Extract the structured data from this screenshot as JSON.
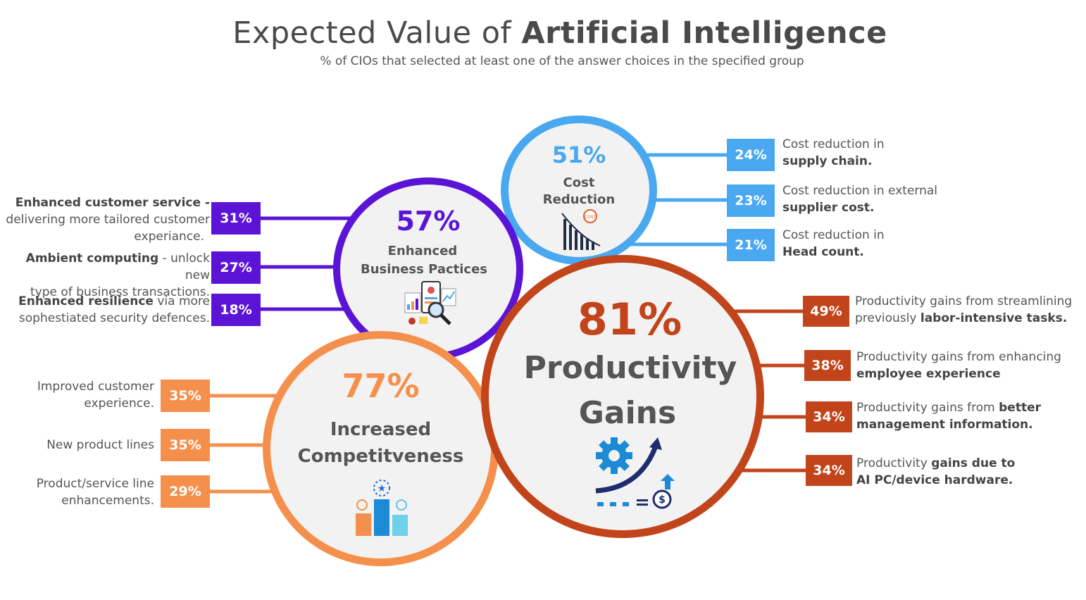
{
  "title": {
    "light": "Expected Value of ",
    "bold": "Artificial Intelligence"
  },
  "subtitle": "% of CIOs that selected at least one of the answer choices in the specified group",
  "colors": {
    "purple": "#5b14d6",
    "blue": "#4aa8f0",
    "orange": "#f5904c",
    "rust": "#c2441a",
    "circle_fill": "#f2f2f2"
  },
  "groups": {
    "cost": {
      "pct": "51%",
      "name_line1": "Cost",
      "name_line2": "Reduction",
      "icon": "cost-chart-icon",
      "items": [
        {
          "pct": "24%",
          "line1": "Cost reduction in",
          "line2_bold": "supply chain."
        },
        {
          "pct": "23%",
          "line1": "Cost reduction in external",
          "line2_bold": "supplier cost."
        },
        {
          "pct": "21%",
          "line1": "Cost reduction in",
          "line2_bold": "Head count."
        }
      ]
    },
    "business": {
      "pct": "57%",
      "name_line1": "Enhanced",
      "name_line2": "Business Pactices",
      "icon": "business-analytics-icon",
      "items": [
        {
          "pct": "31%",
          "bold": "Enhanced customer service -",
          "rest1": "delivering more tailored customer",
          "rest2": "experiance."
        },
        {
          "pct": "27%",
          "bold": "Ambient computing",
          "rest_inline": " - unlock new",
          "rest2": "type of business transactions."
        },
        {
          "pct": "18%",
          "bold": "Enhanced resilience",
          "rest_inline": " via more",
          "rest2": "sophestiated security defences."
        }
      ]
    },
    "productivity": {
      "pct": "81%",
      "name_line1": "Productivity",
      "name_line2": "Gains",
      "icon": "growth-gear-icon",
      "items": [
        {
          "pct": "49%",
          "line1": "Productivity gains from streamlining",
          "line2_pre": "previously ",
          "line2_bold": "labor-intensive tasks."
        },
        {
          "pct": "38%",
          "line1": "Productivity gains from enhancing",
          "line2_pre": "",
          "line2_bold": "employee experience"
        },
        {
          "pct": "34%",
          "line1_pre": "Productivity gains from ",
          "line1_bold": "better",
          "line2_pre": "",
          "line2_bold": "management information."
        },
        {
          "pct": "34%",
          "line1_pre": "Productivity ",
          "line1_bold": "gains due to",
          "line2_pre": "",
          "line2_bold": "AI PC/device hardware."
        }
      ]
    },
    "competitiveness": {
      "pct": "77%",
      "name_line1": "Increased",
      "name_line2": "Competitveness",
      "icon": "podium-icon",
      "items": [
        {
          "pct": "35%",
          "line1": "Improved customer",
          "line2": "experience."
        },
        {
          "pct": "35%",
          "line1": "New product lines",
          "line2": ""
        },
        {
          "pct": "29%",
          "line1": "Product/service line",
          "line2": "enhancements."
        }
      ]
    }
  }
}
